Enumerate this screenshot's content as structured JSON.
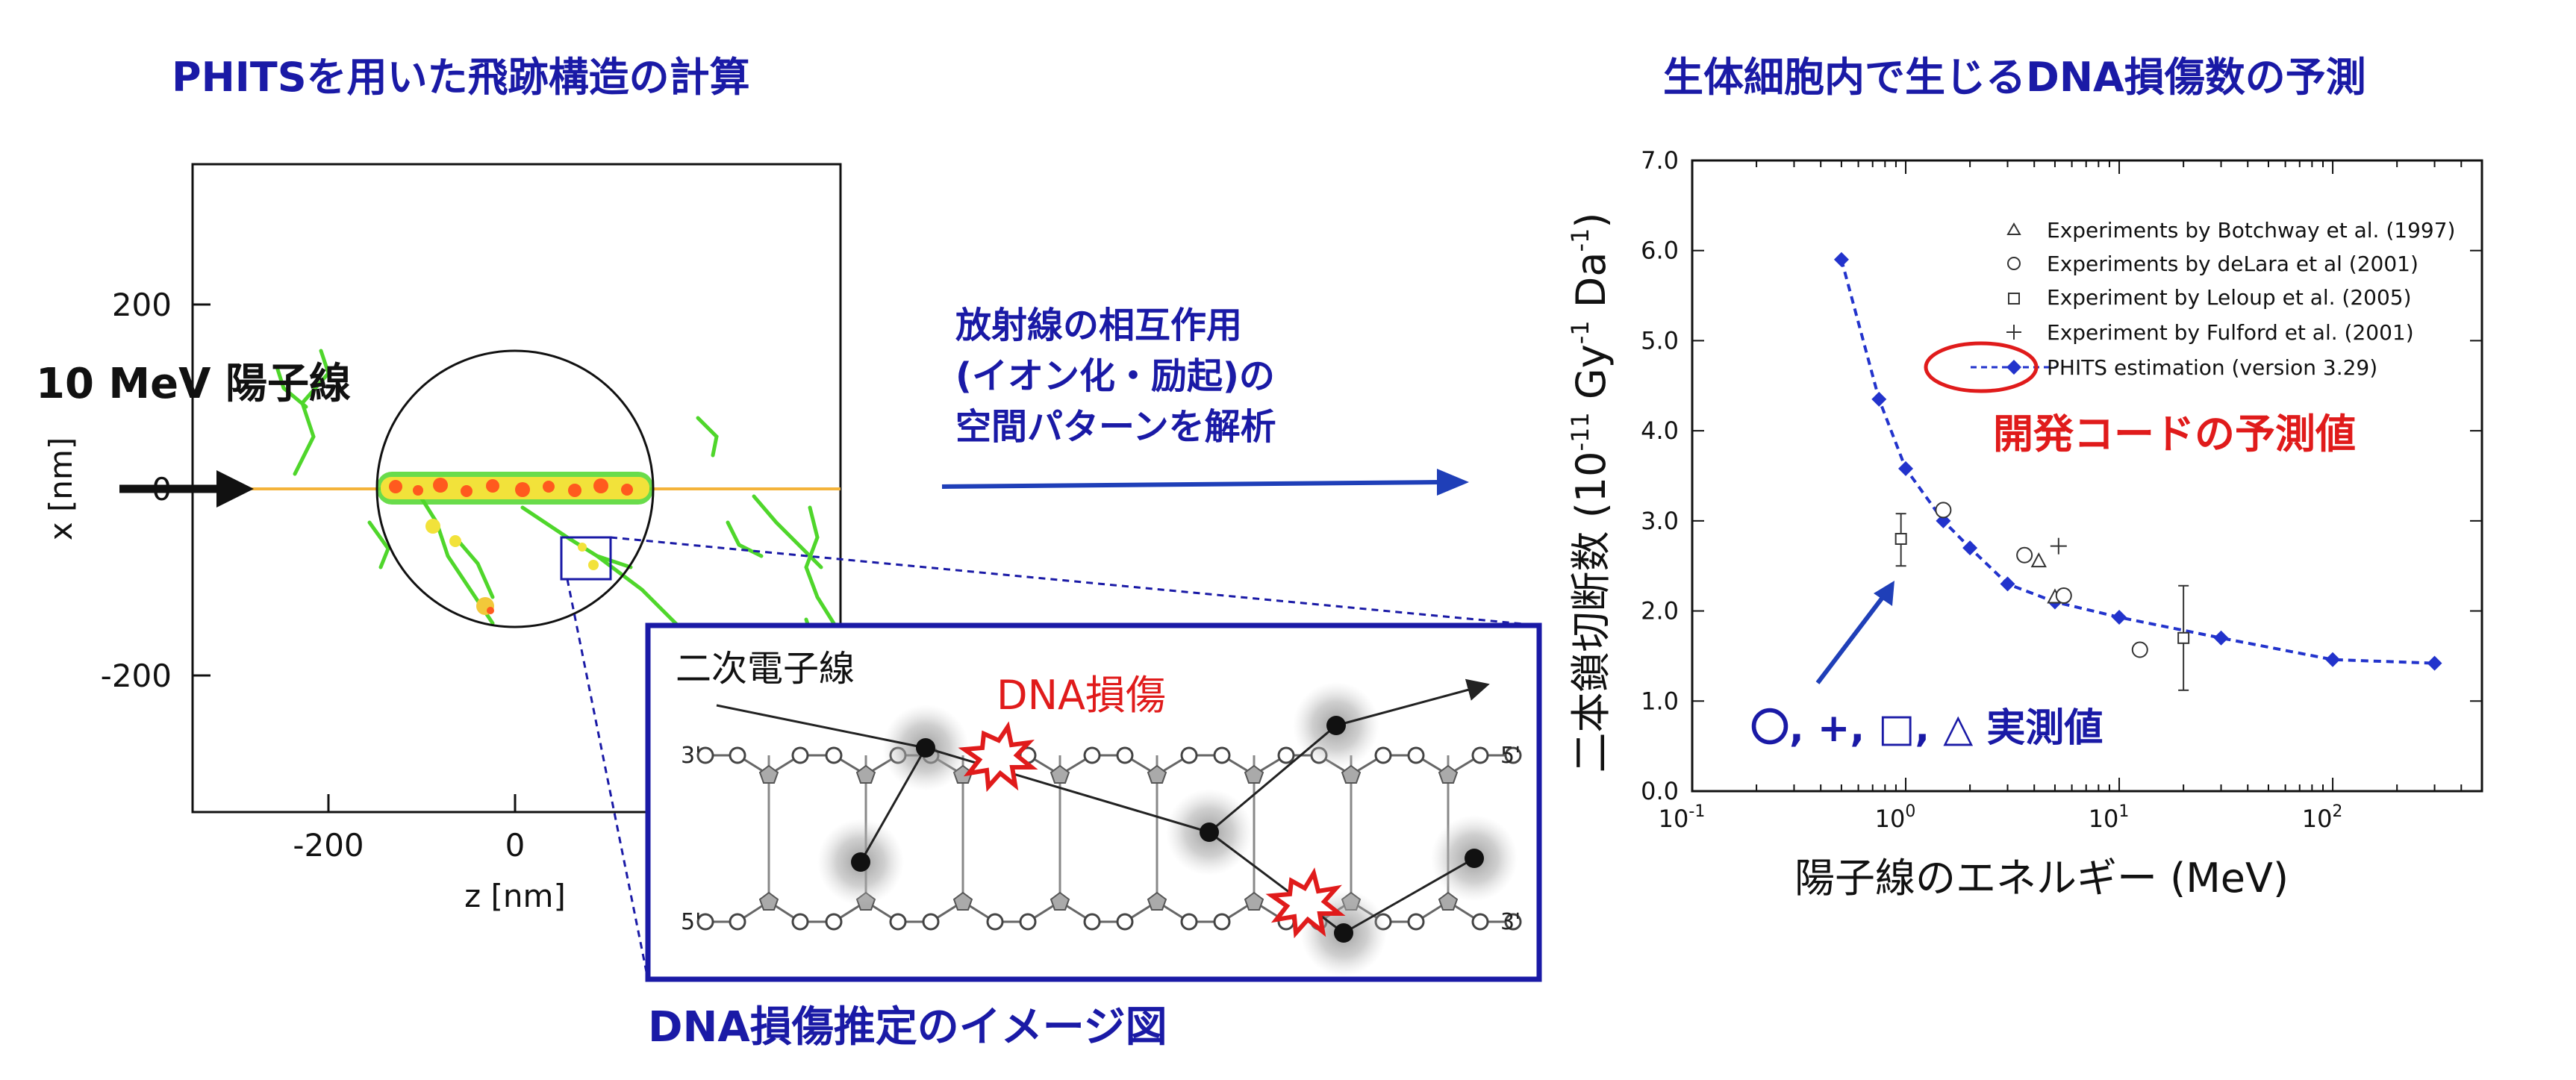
{
  "left_panel": {
    "title": "PHITSを用いた飛跡構造の計算",
    "beam_label": "10 MeV 陽子線",
    "xaxis_label": "z [nm]",
    "yaxis_label": "x [nm]",
    "x_ticks": [
      -200,
      0
    ],
    "y_ticks": [
      200,
      0,
      -200
    ]
  },
  "middle": {
    "line1": "放射線の相互作用",
    "line2": "(イオン化・励起)の",
    "line3": "空間パターンを解析"
  },
  "inset": {
    "secondary_label": "二次電子線",
    "damage_label": "DNA損傷",
    "strand_end_top_left": "3'",
    "strand_end_top_right": "5'",
    "strand_end_bottom_left": "5'",
    "strand_end_bottom_right": "3'",
    "caption": "DNA損傷推定のイメージ図"
  },
  "right_panel": {
    "title": "生体細胞内で生じるDNA損傷数の予測",
    "ylabel_text": "二本鎖切断数 (10",
    "ylabel_exp1": "-11",
    "ylabel_mid": " Gy",
    "ylabel_exp2": "-1",
    "ylabel_mid2": " Da",
    "ylabel_exp3": "-1",
    "ylabel_end": ")",
    "xlabel": "陽子線のエネルギー (MeV)",
    "predicted_label": "開発コードの予測値",
    "measured_label": "〇, +, □, △ 実測値",
    "tick_base": "10",
    "legend": [
      {
        "symbol": "triangle",
        "label": "Experiments by Botchway et al. (1997)"
      },
      {
        "symbol": "circle",
        "label": "Experiments by deLara et al (2001)"
      },
      {
        "symbol": "square",
        "label": "Experiment by Leloup et al. (2005)"
      },
      {
        "symbol": "plus",
        "label": "Experiment by Fulford et al. (2001)"
      },
      {
        "symbol": "line-diamond",
        "label": "PHITS estimation (version 3.29)"
      }
    ]
  },
  "chart_data": {
    "type": "line",
    "x_scale": "log",
    "xlim": [
      0.1,
      500
    ],
    "ylim": [
      0,
      7
    ],
    "y_ticks": [
      "0.0",
      "1.0",
      "2.0",
      "3.0",
      "4.0",
      "5.0",
      "6.0",
      "7.0"
    ],
    "x_tick_exponents": [
      "-1",
      "0",
      "1",
      "2"
    ],
    "series": [
      {
        "name": "PHITS estimation (version 3.29)",
        "marker": "diamond",
        "x": [
          0.5,
          0.75,
          1.0,
          1.5,
          2.0,
          3.0,
          5.0,
          10,
          30,
          100,
          300
        ],
        "y": [
          5.9,
          4.35,
          3.58,
          3.0,
          2.7,
          2.3,
          2.1,
          1.93,
          1.7,
          1.46,
          1.42
        ]
      },
      {
        "name": "Experiments by Botchway et al. (1997)",
        "marker": "triangle",
        "x": [
          4.2,
          5.0
        ],
        "y": [
          2.55,
          2.15
        ]
      },
      {
        "name": "Experiments by deLara et al (2001)",
        "marker": "circle",
        "x": [
          1.5,
          3.6,
          5.5,
          12.5
        ],
        "y": [
          3.12,
          2.62,
          2.17,
          1.57
        ]
      },
      {
        "name": "Experiment by Leloup et al. (2005)",
        "marker": "square",
        "x": [
          0.95,
          20
        ],
        "y": [
          2.8,
          1.7
        ],
        "err_low": [
          2.5,
          1.12
        ],
        "err_high": [
          3.08,
          2.28
        ]
      },
      {
        "name": "Experiment by Fulford et al. (2001)",
        "marker": "plus",
        "x": [
          5.2
        ],
        "y": [
          2.72
        ]
      }
    ]
  },
  "colors": {
    "title_blue": "#1a1aa6",
    "arrow_blue": "#1f3fb8",
    "series_blue": "#2233cc",
    "accent_red": "#e01b1b",
    "track_green": "#4fd62b",
    "track_core": "#ff5a1e"
  }
}
